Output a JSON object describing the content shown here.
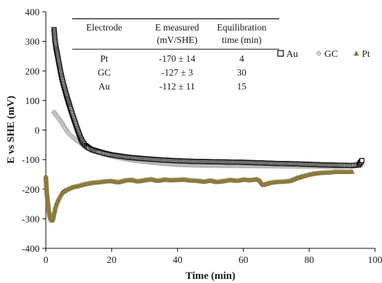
{
  "chart_data": {
    "type": "scatter",
    "title": "",
    "xlabel": "Time (min)",
    "ylabel": "E vs SHE (mV)",
    "xlim": [
      0,
      100
    ],
    "ylim": [
      -400,
      400
    ],
    "x_ticks": [
      "0",
      "20",
      "40",
      "60",
      "80",
      "100"
    ],
    "y_ticks": [
      "400",
      "300",
      "200",
      "100",
      "0",
      "-100",
      "-200",
      "-300",
      "-400"
    ],
    "grid": false,
    "legend_position": "right",
    "series": [
      {
        "name": "Au",
        "marker": "open-square",
        "color": "#111111",
        "points": [
          [
            2.5,
            340
          ],
          [
            2.8,
            300
          ],
          [
            3.1,
            278
          ],
          [
            3.5,
            255
          ],
          [
            4,
            225
          ],
          [
            4.5,
            195
          ],
          [
            5,
            170
          ],
          [
            5.5,
            148
          ],
          [
            6,
            128
          ],
          [
            6.5,
            108
          ],
          [
            7,
            90
          ],
          [
            7.5,
            72
          ],
          [
            8,
            55
          ],
          [
            8.5,
            38
          ],
          [
            9,
            22
          ],
          [
            9.5,
            5
          ],
          [
            10,
            -10
          ],
          [
            10.5,
            -25
          ],
          [
            11,
            -38
          ],
          [
            12,
            -52
          ],
          [
            13,
            -60
          ],
          [
            14,
            -66
          ],
          [
            16,
            -73
          ],
          [
            18,
            -79
          ],
          [
            20,
            -84
          ],
          [
            25,
            -92
          ],
          [
            30,
            -97
          ],
          [
            35,
            -101
          ],
          [
            40,
            -104
          ],
          [
            45,
            -106
          ],
          [
            50,
            -107
          ],
          [
            55,
            -108
          ],
          [
            60,
            -109
          ],
          [
            65,
            -111
          ],
          [
            70,
            -113
          ],
          [
            75,
            -114
          ],
          [
            80,
            -116
          ],
          [
            85,
            -118
          ],
          [
            90,
            -119
          ],
          [
            93,
            -120
          ],
          [
            95,
            -118
          ],
          [
            96,
            -103
          ]
        ]
      },
      {
        "name": "GC",
        "marker": "diamond",
        "color": "#a6a6a6",
        "points": [
          [
            2.5,
            60
          ],
          [
            3,
            52
          ],
          [
            3.5,
            45
          ],
          [
            4,
            38
          ],
          [
            4.5,
            30
          ],
          [
            5,
            22
          ],
          [
            5.5,
            12
          ],
          [
            6,
            4
          ],
          [
            6.5,
            -5
          ],
          [
            7,
            -12
          ],
          [
            8,
            -22
          ],
          [
            9,
            -32
          ],
          [
            10,
            -40
          ],
          [
            11,
            -48
          ],
          [
            12,
            -55
          ],
          [
            13,
            -62
          ],
          [
            14,
            -68
          ],
          [
            16,
            -75
          ],
          [
            18,
            -82
          ],
          [
            20,
            -88
          ],
          [
            25,
            -99
          ],
          [
            30,
            -106
          ],
          [
            35,
            -112
          ],
          [
            40,
            -116
          ],
          [
            45,
            -118
          ],
          [
            50,
            -119
          ],
          [
            60,
            -120
          ],
          [
            70,
            -121
          ],
          [
            80,
            -122
          ],
          [
            90,
            -123
          ],
          [
            96,
            -118
          ]
        ]
      },
      {
        "name": "Pt",
        "marker": "triangle",
        "color": "#8c7a3f",
        "points": [
          [
            0,
            -155
          ],
          [
            0.3,
            -210
          ],
          [
            0.6,
            -240
          ],
          [
            0.9,
            -270
          ],
          [
            1.2,
            -290
          ],
          [
            1.5,
            -300
          ],
          [
            1.8,
            -305
          ],
          [
            2.1,
            -298
          ],
          [
            2.4,
            -285
          ],
          [
            3,
            -255
          ],
          [
            3.5,
            -240
          ],
          [
            4,
            -228
          ],
          [
            4.5,
            -218
          ],
          [
            5,
            -210
          ],
          [
            6,
            -203
          ],
          [
            7,
            -198
          ],
          [
            8,
            -193
          ],
          [
            10,
            -188
          ],
          [
            12,
            -182
          ],
          [
            14,
            -178
          ],
          [
            16,
            -176
          ],
          [
            18,
            -173
          ],
          [
            20,
            -172
          ],
          [
            22,
            -176
          ],
          [
            24,
            -170
          ],
          [
            26,
            -168
          ],
          [
            28,
            -173
          ],
          [
            30,
            -169
          ],
          [
            32,
            -166
          ],
          [
            34,
            -171
          ],
          [
            36,
            -167
          ],
          [
            38,
            -169
          ],
          [
            40,
            -168
          ],
          [
            42,
            -167
          ],
          [
            44,
            -170
          ],
          [
            46,
            -171
          ],
          [
            48,
            -174
          ],
          [
            50,
            -170
          ],
          [
            52,
            -175
          ],
          [
            54,
            -172
          ],
          [
            56,
            -168
          ],
          [
            58,
            -171
          ],
          [
            60,
            -167
          ],
          [
            62,
            -169
          ],
          [
            64,
            -166
          ],
          [
            65,
            -170
          ],
          [
            66,
            -185
          ],
          [
            68,
            -178
          ],
          [
            70,
            -175
          ],
          [
            72,
            -174
          ],
          [
            74,
            -172
          ],
          [
            76,
            -163
          ],
          [
            78,
            -156
          ],
          [
            80,
            -150
          ],
          [
            82,
            -146
          ],
          [
            84,
            -144
          ],
          [
            86,
            -143
          ],
          [
            88,
            -141
          ],
          [
            90,
            -141
          ],
          [
            92,
            -141
          ],
          [
            93,
            -140
          ]
        ]
      }
    ],
    "inset_table": {
      "headers": [
        [
          "Electrode"
        ],
        [
          "E measured",
          "(mV/SHE)"
        ],
        [
          "Equilibration",
          "time (min)"
        ]
      ],
      "rows": [
        [
          "Pt",
          "-170 ± 14",
          "4"
        ],
        [
          "GC",
          "-127 ± 3",
          "30"
        ],
        [
          "Au",
          "-112 ± 11",
          "15"
        ]
      ]
    }
  }
}
